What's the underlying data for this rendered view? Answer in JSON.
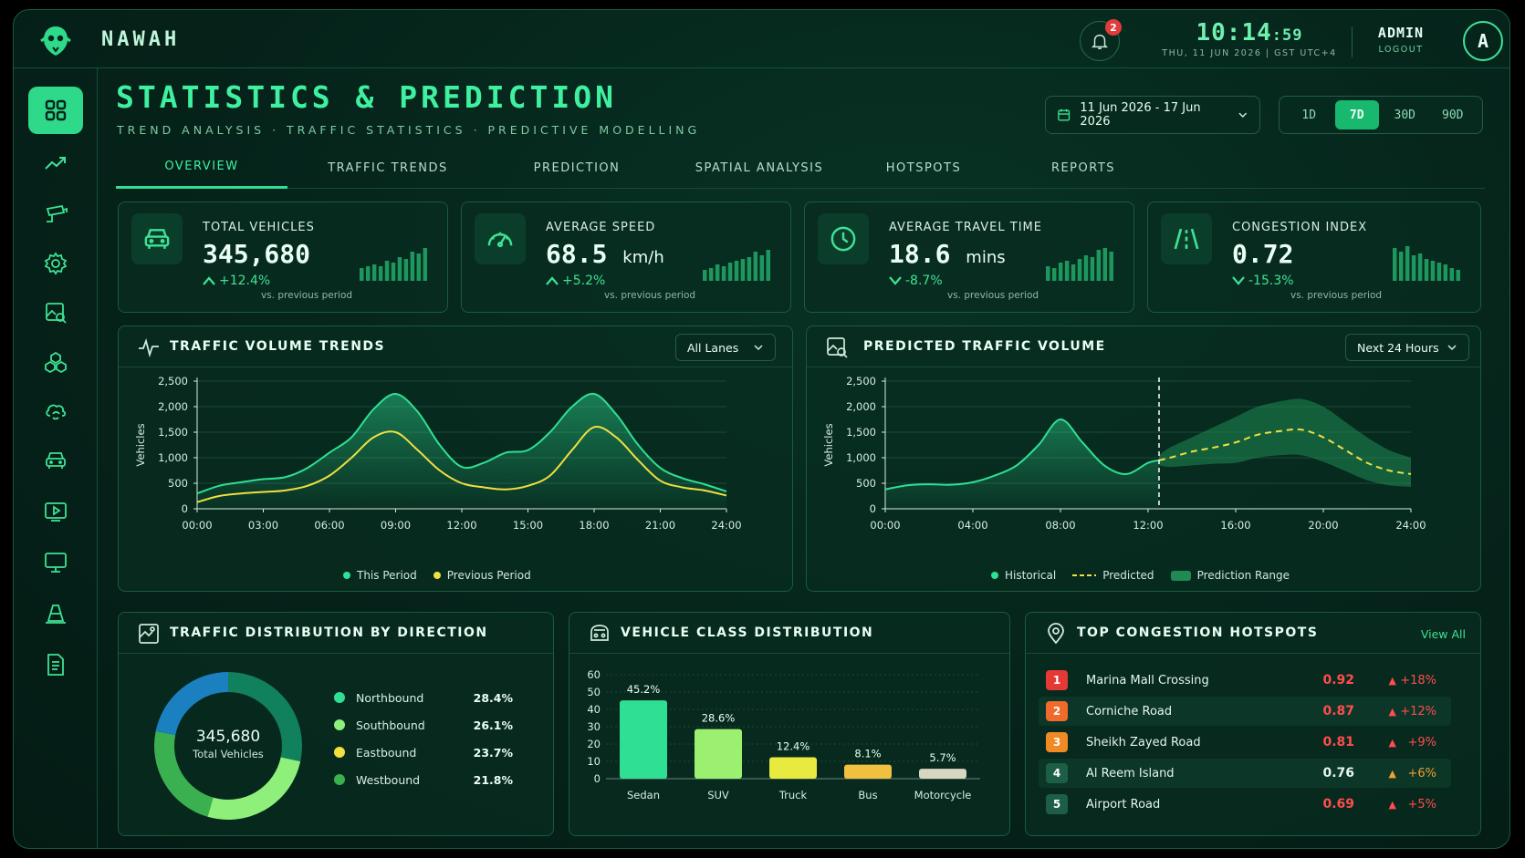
{
  "app": {
    "brand": "NAWAH"
  },
  "topbar": {
    "notifications_count": "2",
    "clock_hm": "10:14",
    "clock_s": ":59",
    "clock_date": "THU, 11 JUN 2026  |  GST UTC+4",
    "user_name": "ADMIN",
    "logout_label": "LOGOUT",
    "avatar_letter": "A"
  },
  "sidebar": {
    "items": [
      {
        "icon": "grid-icon",
        "active": true
      },
      {
        "icon": "trend-icon"
      },
      {
        "icon": "camera-icon"
      },
      {
        "icon": "gear-icon"
      },
      {
        "icon": "image-search-icon"
      },
      {
        "icon": "cubes-icon"
      },
      {
        "icon": "cloud-sync-icon"
      },
      {
        "icon": "car-icon"
      },
      {
        "icon": "play-icon"
      },
      {
        "icon": "monitor-icon"
      },
      {
        "icon": "cone-icon"
      },
      {
        "icon": "document-icon"
      }
    ]
  },
  "header": {
    "title": "STATISTICS & PREDICTION",
    "subtitle": "TREND ANALYSIS · TRAFFIC STATISTICS · PREDICTIVE MODELLING",
    "date_range": "11 Jun 2026 - 17 Jun 2026",
    "ranges": [
      "1D",
      "7D",
      "30D",
      "90D"
    ],
    "active_range": "7D"
  },
  "tabs": [
    "OVERVIEW",
    "TRAFFIC TRENDS",
    "PREDICTION",
    "SPATIAL ANALYSIS",
    "HOTSPOTS",
    "REPORTS"
  ],
  "kpis": [
    {
      "label": "TOTAL VEHICLES",
      "value": "345,680",
      "unit": "",
      "change": "+12.4%",
      "direction": "up",
      "note": "vs. previous period",
      "icon": "car-icon",
      "spark": [
        0.35,
        0.4,
        0.45,
        0.4,
        0.55,
        0.5,
        0.65,
        0.6,
        0.8,
        0.75,
        0.9
      ]
    },
    {
      "label": "AVERAGE SPEED",
      "value": "68.5",
      "unit": "km/h",
      "change": "+5.2%",
      "direction": "up",
      "note": "vs. previous period",
      "icon": "speedometer-icon",
      "spark": [
        0.3,
        0.35,
        0.45,
        0.4,
        0.5,
        0.55,
        0.6,
        0.65,
        0.8,
        0.7,
        0.85
      ]
    },
    {
      "label": "AVERAGE TRAVEL TIME",
      "value": "18.6",
      "unit": "mins",
      "change": "-8.7%",
      "direction": "down",
      "note": "vs. previous period",
      "icon": "clock-icon",
      "spark": [
        0.4,
        0.35,
        0.5,
        0.55,
        0.45,
        0.6,
        0.7,
        0.65,
        0.85,
        0.9,
        0.8
      ]
    },
    {
      "label": "CONGESTION INDEX",
      "value": "0.72",
      "unit": "",
      "change": "-15.3%",
      "direction": "down",
      "note": "vs. previous period",
      "icon": "road-icon",
      "spark": [
        0.9,
        0.8,
        0.95,
        0.7,
        0.75,
        0.6,
        0.55,
        0.5,
        0.45,
        0.35,
        0.3
      ]
    }
  ],
  "trends": {
    "title": "TRAFFIC VOLUME TRENDS",
    "filter": "All Lanes",
    "legend": [
      "This Period",
      "Previous Period"
    ]
  },
  "prediction": {
    "title": "PREDICTED TRAFFIC VOLUME",
    "filter": "Next 24 Hours",
    "now_label": "Now",
    "legend": [
      "Historical",
      "Predicted",
      "Prediction Range"
    ]
  },
  "direction": {
    "title": "TRAFFIC DISTRIBUTION BY DIRECTION",
    "center_value": "345,680",
    "center_label": "Total Vehicles"
  },
  "vehicle_class": {
    "title": "VEHICLE CLASS DISTRIBUTION"
  },
  "hotspots": {
    "title": "TOP CONGESTION HOTSPOTS",
    "view_all": "View All",
    "rows": [
      {
        "rank": "1",
        "name": "Marina Mall Crossing",
        "value": "0.92",
        "change": "+18%",
        "rank_color": "#e53935",
        "value_color": "#ff4d4d",
        "arrow_color": "#ff4d4d"
      },
      {
        "rank": "2",
        "name": "Corniche Road",
        "value": "0.87",
        "change": "+12%",
        "rank_color": "#f06a2b",
        "value_color": "#ff4d4d",
        "arrow_color": "#ff4d4d"
      },
      {
        "rank": "3",
        "name": "Sheikh Zayed Road",
        "value": "0.81",
        "change": "+9%",
        "rank_color": "#f08a24",
        "value_color": "#ff4d4d",
        "arrow_color": "#ff4d4d"
      },
      {
        "rank": "4",
        "name": "Al Reem Island",
        "value": "0.76",
        "change": "+6%",
        "rank_color": "#1d5e47",
        "value_color": "#e4f6ec",
        "arrow_color": "#f0a030"
      },
      {
        "rank": "5",
        "name": "Airport Road",
        "value": "0.69",
        "change": "+5%",
        "rank_color": "#1d5e47",
        "value_color": "#ff4d4d",
        "arrow_color": "#ff4d4d"
      }
    ]
  },
  "colors": {
    "accent": "#2fe094",
    "this_period": "#2fe094",
    "previous_period": "#f0e040",
    "predicted": "#f0e040"
  },
  "chart_data": [
    {
      "id": "traffic-volume-trends",
      "type": "line",
      "title": "TRAFFIC VOLUME TRENDS",
      "xlabel": "",
      "ylabel": "Vehicles",
      "x_ticks": [
        "00:00",
        "03:00",
        "06:00",
        "09:00",
        "12:00",
        "15:00",
        "18:00",
        "21:00",
        "24:00"
      ],
      "y_ticks": [
        "0",
        "500",
        "1,000",
        "1,500",
        "2,000",
        "2,500"
      ],
      "ylim": [
        0,
        2500
      ],
      "xlim": [
        0,
        24
      ],
      "x": [
        0,
        1,
        2,
        3,
        4,
        5,
        6,
        7,
        8,
        9,
        10,
        11,
        12,
        13,
        14,
        15,
        16,
        17,
        18,
        19,
        20,
        21,
        22,
        23,
        24
      ],
      "series": [
        {
          "name": "This Period",
          "color": "#2fe094",
          "values": [
            300,
            450,
            520,
            580,
            620,
            800,
            1100,
            1400,
            1950,
            2250,
            1900,
            1250,
            820,
            900,
            1100,
            1150,
            1500,
            2000,
            2250,
            1850,
            1250,
            800,
            600,
            480,
            340
          ]
        },
        {
          "name": "Previous Period",
          "color": "#f0e040",
          "values": [
            130,
            250,
            300,
            330,
            360,
            450,
            650,
            1000,
            1400,
            1500,
            1150,
            750,
            500,
            420,
            380,
            450,
            650,
            1150,
            1600,
            1400,
            950,
            550,
            420,
            360,
            260
          ]
        }
      ],
      "legend": "bottom"
    },
    {
      "id": "predicted-traffic-volume",
      "type": "line",
      "title": "PREDICTED TRAFFIC VOLUME",
      "xlabel": "",
      "ylabel": "Vehicles",
      "x_ticks": [
        "00:00",
        "04:00",
        "08:00",
        "12:00",
        "16:00",
        "20:00",
        "24:00"
      ],
      "y_ticks": [
        "0",
        "500",
        "1,000",
        "1,500",
        "2,000",
        "2,500"
      ],
      "ylim": [
        0,
        2500
      ],
      "xlim": [
        0,
        24
      ],
      "now": 12.5,
      "series": [
        {
          "name": "Historical",
          "color": "#2fe094",
          "x": [
            0,
            1,
            2,
            3,
            4,
            5,
            6,
            7,
            8,
            9,
            10,
            11,
            12,
            12.5
          ],
          "values": [
            380,
            460,
            480,
            470,
            520,
            650,
            850,
            1250,
            1750,
            1300,
            850,
            680,
            900,
            950
          ]
        },
        {
          "name": "Predicted",
          "color": "#f0e040",
          "x": [
            12.5,
            13,
            14,
            15,
            16,
            17,
            18,
            19,
            20,
            21,
            22,
            23,
            24
          ],
          "values": [
            950,
            1000,
            1120,
            1200,
            1300,
            1450,
            1520,
            1550,
            1400,
            1150,
            900,
            750,
            680
          ]
        },
        {
          "name": "Prediction Range",
          "color": "#1f8a52",
          "x": [
            12.5,
            13,
            14,
            15,
            16,
            17,
            18,
            19,
            20,
            21,
            22,
            23,
            24
          ],
          "lower": [
            850,
            820,
            850,
            880,
            900,
            1000,
            1050,
            1050,
            920,
            740,
            560,
            460,
            430
          ],
          "upper": [
            1050,
            1200,
            1400,
            1600,
            1800,
            2000,
            2100,
            2150,
            2000,
            1700,
            1400,
            1150,
            1000
          ]
        }
      ],
      "legend": "bottom"
    },
    {
      "id": "traffic-distribution-by-direction",
      "type": "pie",
      "title": "TRAFFIC DISTRIBUTION BY DIRECTION",
      "labels": [
        "Northbound",
        "Southbound",
        "Eastbound",
        "Westbound"
      ],
      "values": [
        28.4,
        26.1,
        23.7,
        21.8
      ],
      "display": [
        "28.4%",
        "26.1%",
        "23.7%",
        "21.8%"
      ],
      "legend_colors": [
        "#2fe094",
        "#8ef07a",
        "#f0e040",
        "#3bb050"
      ],
      "ring_colors": [
        "#11805c",
        "#8ef07a",
        "#3bb050",
        "#1a80c0"
      ]
    },
    {
      "id": "vehicle-class-distribution",
      "type": "bar",
      "title": "VEHICLE CLASS DISTRIBUTION",
      "categories": [
        "Sedan",
        "SUV",
        "Truck",
        "Bus",
        "Motorcycle"
      ],
      "values": [
        45.2,
        28.6,
        12.4,
        8.1,
        5.7
      ],
      "labels": [
        "45.2%",
        "28.6%",
        "12.4%",
        "8.1%",
        "5.7%"
      ],
      "colors": [
        "#2fe094",
        "#9cf070",
        "#e8ea40",
        "#f0c040",
        "#d8d6c0"
      ],
      "y_ticks": [
        "0",
        "10",
        "20",
        "30",
        "40",
        "50",
        "60"
      ],
      "ylim": [
        0,
        60
      ]
    }
  ]
}
